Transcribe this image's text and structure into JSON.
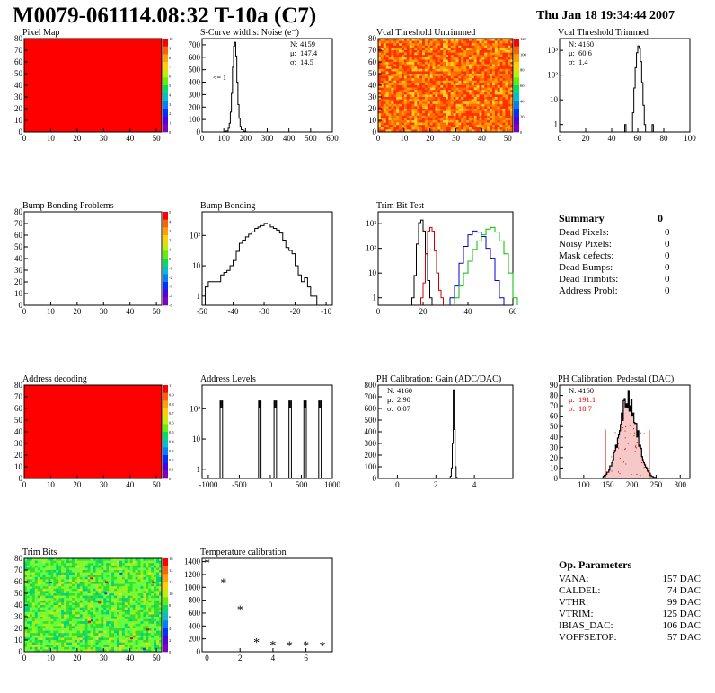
{
  "header": {
    "title": "M0079-061114.08:32 T-10a (C7)",
    "date": "Thu Jan 18 19:34:44 2007"
  },
  "summary": {
    "title": "Summary",
    "total": "0",
    "rows": [
      {
        "label": "Dead Pixels:",
        "value": "0"
      },
      {
        "label": "Noisy Pixels:",
        "value": "0"
      },
      {
        "label": "Mask defects:",
        "value": "0"
      },
      {
        "label": "Dead Bumps:",
        "value": "0"
      },
      {
        "label": "Dead Trimbits:",
        "value": "0"
      },
      {
        "label": "Address Probl:",
        "value": "0"
      }
    ]
  },
  "op_parameters": {
    "title": "Op. Parameters",
    "rows": [
      {
        "label": "VANA:",
        "value": "157 DAC"
      },
      {
        "label": "CALDEL:",
        "value": "74 DAC"
      },
      {
        "label": "VTHR:",
        "value": "99 DAC"
      },
      {
        "label": "VTRIM:",
        "value": "125 DAC"
      },
      {
        "label": "IBIAS_DAC:",
        "value": "106 DAC"
      },
      {
        "label": "VOFFSETOP:",
        "value": "57 DAC"
      }
    ]
  },
  "colors": {
    "map_red": "#ff0000",
    "trim_red": "#d00000",
    "trim_blue": "#0000d0",
    "trim_green": "#00c000",
    "stat_red": "#e00000"
  },
  "chart_data": [
    {
      "id": "pixel-map",
      "type": "heatmap",
      "title": "Pixel Map",
      "xlim": [
        0,
        52
      ],
      "ylim": [
        0,
        80
      ],
      "xticks": [
        "0",
        "10",
        "20",
        "30",
        "40",
        "50"
      ],
      "yticks": [
        "0",
        "10",
        "20",
        "30",
        "40",
        "50",
        "60",
        "70",
        "80"
      ],
      "fill": "uniform",
      "palette_ticks": [
        "0",
        "1",
        "2",
        "3",
        "4",
        "5",
        "6",
        "7",
        "8",
        "9",
        "10"
      ]
    },
    {
      "id": "scurve",
      "type": "histogram",
      "title": "S-Curve widths: Noise (e⁻)",
      "xlim": [
        0,
        600
      ],
      "log_y": false,
      "ylim": [
        0,
        750
      ],
      "xticks": [
        "0",
        "100",
        "200",
        "300",
        "400",
        "500",
        "600"
      ],
      "yticks": [
        "0",
        "100",
        "200",
        "300",
        "400",
        "500",
        "600",
        "700"
      ],
      "annotation": "<= 1",
      "stats": [
        {
          "label": "N:",
          "value": "4159"
        },
        {
          "label": "μ:",
          "value": "147.4"
        },
        {
          "label": "σ:",
          "value": "14.5"
        }
      ],
      "x": [
        90,
        100,
        110,
        120,
        125,
        130,
        135,
        140,
        145,
        150,
        155,
        160,
        165,
        170,
        175,
        180,
        190,
        200,
        210
      ],
      "y": [
        0,
        2,
        8,
        30,
        70,
        160,
        310,
        520,
        690,
        720,
        610,
        400,
        220,
        110,
        45,
        18,
        6,
        1,
        0
      ]
    },
    {
      "id": "vcal-untrimmed",
      "type": "heatmap",
      "title": "Vcal Threshold Untrimmed",
      "xlim": [
        0,
        52
      ],
      "ylim": [
        0,
        80
      ],
      "xticks": [
        "0",
        "10",
        "20",
        "30",
        "40",
        "50"
      ],
      "yticks": [
        "0",
        "10",
        "20",
        "30",
        "40",
        "50",
        "60",
        "70",
        "80"
      ],
      "fill": "noise-orange",
      "palette_ticks": [
        "0",
        "20",
        "40",
        "60",
        "80",
        "100",
        "120"
      ]
    },
    {
      "id": "vcal-trimmed",
      "type": "histogram",
      "title": "Vcal Threshold Trimmed",
      "xlim": [
        0,
        100
      ],
      "log_y": true,
      "ylim": [
        0.5,
        3000
      ],
      "xticks": [
        "0",
        "20",
        "40",
        "60",
        "80",
        "100"
      ],
      "yticks": [
        "1",
        "10",
        "10²",
        "10³"
      ],
      "stats": [
        {
          "label": "N:",
          "value": "4160"
        },
        {
          "label": "μ:",
          "value": "60.6"
        },
        {
          "label": "σ:",
          "value": "1.4"
        }
      ],
      "x": [
        50,
        51,
        56,
        57,
        58,
        59,
        60,
        61,
        62,
        63,
        64,
        65,
        66,
        71,
        72
      ],
      "y": [
        1,
        0,
        3,
        30,
        200,
        800,
        1500,
        1200,
        350,
        50,
        6,
        1,
        0,
        1,
        0
      ]
    },
    {
      "id": "bump-problems",
      "type": "heatmap",
      "title": "Bump Bonding Problems",
      "xlim": [
        0,
        52
      ],
      "ylim": [
        0,
        80
      ],
      "xticks": [
        "0",
        "10",
        "20",
        "30",
        "40",
        "50"
      ],
      "yticks": [
        "0",
        "10",
        "20",
        "30",
        "40",
        "50",
        "60",
        "70",
        "80"
      ],
      "fill": "empty",
      "palette_ticks": [
        "-5",
        "-4",
        "-3",
        "-2",
        "-1",
        "0",
        "1",
        "2",
        "3",
        "4",
        "5"
      ]
    },
    {
      "id": "bump-bonding",
      "type": "histogram",
      "title": "Bump Bonding",
      "xlim": [
        -50,
        -8
      ],
      "log_y": true,
      "ylim": [
        0.5,
        600
      ],
      "xticks": [
        "-50",
        "-40",
        "-30",
        "-20",
        "-10"
      ],
      "yticks": [
        "1",
        "10",
        "10²"
      ],
      "x": [
        -49,
        -48,
        -47,
        -46,
        -45,
        -44,
        -43,
        -42,
        -41,
        -40,
        -39,
        -38,
        -37,
        -36,
        -35,
        -34,
        -33,
        -32,
        -31,
        -30,
        -29,
        -28,
        -27,
        -26,
        -25,
        -24,
        -23,
        -22,
        -21,
        -20,
        -19,
        -18,
        -17,
        -16,
        -15,
        -14
      ],
      "y": [
        2,
        3,
        3,
        3,
        3,
        5,
        6,
        7,
        10,
        15,
        30,
        55,
        70,
        90,
        110,
        130,
        170,
        190,
        210,
        250,
        240,
        190,
        170,
        150,
        120,
        70,
        40,
        32,
        25,
        10,
        5,
        3,
        4,
        2,
        1,
        1
      ]
    },
    {
      "id": "trim-bit-test",
      "type": "histogram",
      "title": "Trim Bit Test",
      "xlim": [
        0,
        60
      ],
      "log_y": true,
      "ylim": [
        0.5,
        3000
      ],
      "xticks": [
        "0",
        "20",
        "40",
        "60"
      ],
      "yticks": [
        "1",
        "10",
        "10²",
        "10³"
      ],
      "series": [
        {
          "color": "#000000",
          "x": [
            15,
            16,
            17,
            18,
            19,
            20,
            21,
            22,
            23
          ],
          "y": [
            1,
            8,
            150,
            1100,
            1400,
            500,
            60,
            5,
            1
          ]
        },
        {
          "color": "#d00000",
          "x": [
            19,
            20,
            21,
            22,
            23,
            24,
            25,
            26,
            27,
            28
          ],
          "y": [
            1,
            4,
            60,
            500,
            700,
            500,
            80,
            10,
            2,
            1
          ]
        },
        {
          "color": "#0000d0",
          "x": [
            32,
            34,
            36,
            38,
            40,
            42,
            44,
            46,
            48,
            50,
            52,
            54
          ],
          "y": [
            1,
            3,
            25,
            120,
            350,
            500,
            450,
            300,
            100,
            40,
            5,
            1
          ]
        },
        {
          "color": "#00c000",
          "x": [
            34,
            36,
            38,
            40,
            42,
            44,
            46,
            48,
            50,
            52,
            54,
            56,
            58,
            60
          ],
          "y": [
            1,
            3,
            10,
            30,
            90,
            200,
            350,
            600,
            700,
            450,
            200,
            60,
            10,
            1
          ]
        }
      ]
    },
    {
      "id": "address-decoding",
      "type": "heatmap",
      "title": "Address decoding",
      "xlim": [
        0,
        52
      ],
      "ylim": [
        0,
        80
      ],
      "xticks": [
        "0",
        "10",
        "20",
        "30",
        "40",
        "50"
      ],
      "yticks": [
        "0",
        "10",
        "20",
        "30",
        "40",
        "50",
        "60",
        "70",
        "80"
      ],
      "fill": "uniform",
      "palette_ticks": [
        "0",
        "0.1",
        "0.2",
        "0.3",
        "0.4",
        "0.5",
        "0.6",
        "0.7",
        "0.8",
        "0.9",
        "1"
      ]
    },
    {
      "id": "address-levels",
      "type": "histogram",
      "title": "Address Levels",
      "xlim": [
        -1100,
        1000
      ],
      "log_y": true,
      "ylim": [
        0.5,
        600
      ],
      "xticks": [
        "-1000",
        "-500",
        "0",
        "500",
        "1000"
      ],
      "yticks": [
        "1",
        "10",
        "10²"
      ],
      "peaks": [
        -790,
        -170,
        80,
        320,
        560,
        800
      ],
      "peak_height": 180
    },
    {
      "id": "ph-gain",
      "type": "histogram",
      "title": "PH Calibration: Gain (ADC/DAC)",
      "xlim": [
        -1,
        6
      ],
      "log_y": false,
      "ylim": [
        0,
        800
      ],
      "xticks": [
        "0",
        "2",
        "4"
      ],
      "yticks": [
        "0",
        "100",
        "200",
        "300",
        "400",
        "500",
        "600",
        "700",
        "800"
      ],
      "stats": [
        {
          "label": "N:",
          "value": "4160"
        },
        {
          "label": "μ:",
          "value": "2.90"
        },
        {
          "label": "σ:",
          "value": "0.07"
        }
      ],
      "x": [
        2.7,
        2.75,
        2.8,
        2.85,
        2.9,
        2.95,
        3.0,
        3.05,
        3.1
      ],
      "y": [
        5,
        20,
        90,
        300,
        760,
        420,
        100,
        10,
        0
      ]
    },
    {
      "id": "ph-pedestal",
      "type": "histogram",
      "title": "PH Calibration: Pedestal (DAC)",
      "xlim": [
        50,
        320
      ],
      "log_y": false,
      "ylim": [
        0,
        90
      ],
      "xticks": [
        "100",
        "150",
        "200",
        "250",
        "300"
      ],
      "yticks": [
        "0",
        "10",
        "20",
        "30",
        "40",
        "50",
        "60",
        "70",
        "80",
        "90"
      ],
      "stats": [
        {
          "label": "N:",
          "value": "4160"
        },
        {
          "label": "μ:",
          "value": "191.1",
          "red": true
        },
        {
          "label": "σ:",
          "value": "18.7",
          "red": true
        }
      ],
      "markers": [
        145,
        236
      ],
      "mean": 191.1,
      "sigma": 18.7,
      "peak": 76
    },
    {
      "id": "trim-bits",
      "type": "heatmap",
      "title": "Trim Bits",
      "xlim": [
        0,
        52
      ],
      "ylim": [
        0,
        80
      ],
      "xticks": [
        "0",
        "10",
        "20",
        "30",
        "40",
        "50"
      ],
      "yticks": [
        "0",
        "10",
        "20",
        "30",
        "40",
        "50",
        "60",
        "70",
        "80"
      ],
      "fill": "noise-green",
      "palette_ticks": [
        "0",
        "2",
        "4",
        "6",
        "8",
        "10",
        "12",
        "14",
        "16"
      ]
    },
    {
      "id": "temperature",
      "type": "scatter",
      "title": "Temperature calibration",
      "xlim": [
        -0.3,
        7.6
      ],
      "ylim": [
        0,
        1450
      ],
      "xticks": [
        "0",
        "2",
        "4",
        "6"
      ],
      "yticks": [
        "0",
        "200",
        "400",
        "600",
        "800",
        "1000",
        "1200",
        "1400"
      ],
      "x": [
        0,
        1,
        2,
        3,
        4,
        5,
        6,
        7
      ],
      "y": [
        1370,
        1070,
        650,
        140,
        95,
        90,
        90,
        85
      ]
    }
  ]
}
